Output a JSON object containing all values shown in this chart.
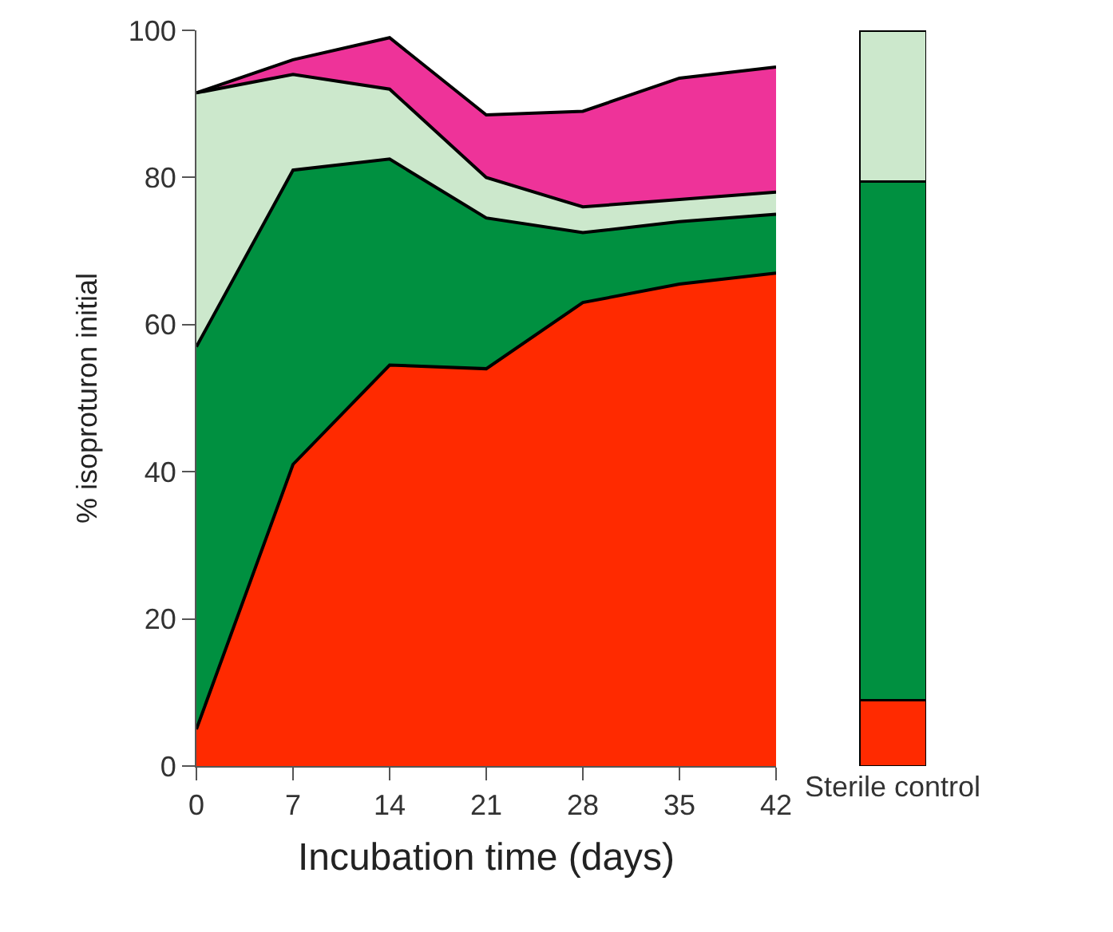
{
  "chart_data": [
    {
      "type": "area",
      "stacked": true,
      "xlabel": "Incubation time (days)",
      "ylabel": "% isoproturon initial",
      "x": [
        0,
        7,
        14,
        21,
        28,
        35,
        42
      ],
      "xlim": [
        0,
        42
      ],
      "xticks": [
        0,
        7,
        14,
        21,
        28,
        35,
        42
      ],
      "ylim": [
        0,
        100
      ],
      "yticks": [
        0,
        20,
        40,
        60,
        80,
        100
      ],
      "series": [
        {
          "color": "#ff2a00",
          "values": [
            5,
            41,
            54.5,
            54,
            63,
            65.5,
            67
          ]
        },
        {
          "color": "#009040",
          "values": [
            52,
            40,
            28,
            20.5,
            9.5,
            8.5,
            8
          ]
        },
        {
          "color": "#cce8cc",
          "values": [
            34.5,
            13,
            9.5,
            5.5,
            3.5,
            3,
            3
          ]
        },
        {
          "color": "#ee3399",
          "values": [
            0,
            2,
            7,
            8.5,
            13,
            16.5,
            17
          ]
        }
      ]
    },
    {
      "type": "bar",
      "stacked": true,
      "categories": [
        "Sterile control"
      ],
      "ylim": [
        0,
        100
      ],
      "tick_labels": "x",
      "series": [
        {
          "color": "#ff2a00",
          "values": [
            9
          ]
        },
        {
          "color": "#009040",
          "values": [
            70.5
          ]
        },
        {
          "color": "#cce8cc",
          "values": [
            20.5
          ]
        }
      ]
    }
  ]
}
